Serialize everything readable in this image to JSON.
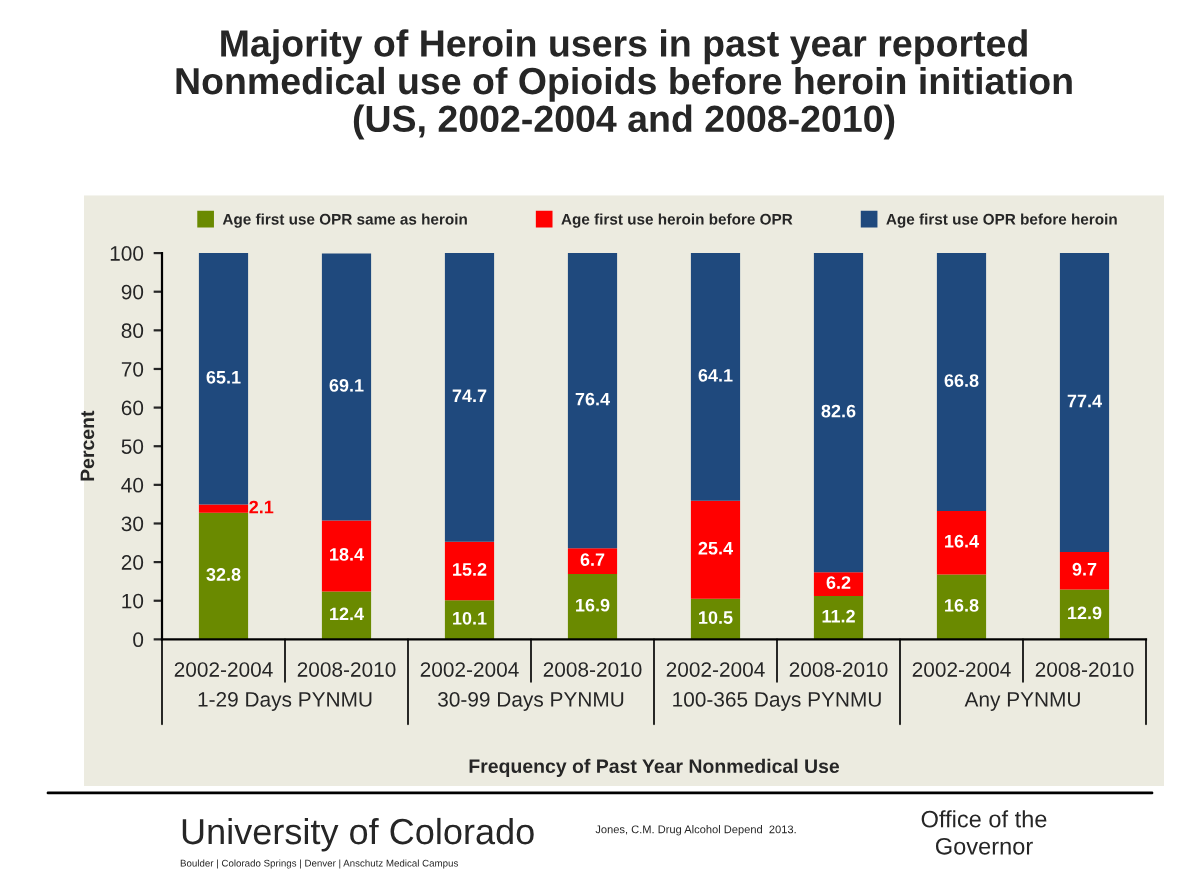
{
  "chart_data": {
    "type": "bar",
    "stacked": true,
    "title": "Majority of Heroin users in past year reported\nNonmedical use of Opioids before heroin initiation\n(US, 2002-2004 and 2008-2010)",
    "categories": [
      "2002-2004",
      "2008-2010",
      "2002-2004",
      "2008-2010",
      "2002-2004",
      "2008-2010",
      "2002-2004",
      "2008-2010"
    ],
    "series": [
      {
        "name": "Age first use OPR same as heroin",
        "color": "#6a8a00",
        "values": [
          32.8,
          12.4,
          10.1,
          16.9,
          10.5,
          11.2,
          16.8,
          12.9
        ]
      },
      {
        "name": "Age first use heroin before OPR",
        "color": "#ff0000",
        "values": [
          2.1,
          18.4,
          15.2,
          6.7,
          25.4,
          6.2,
          16.4,
          9.7
        ]
      },
      {
        "name": "Age first use OPR before heroin",
        "color": "#1f497d",
        "values": [
          65.1,
          69.1,
          74.7,
          76.4,
          64.1,
          82.6,
          66.8,
          77.4
        ]
      }
    ],
    "data_labels": true,
    "ylim": [
      0,
      100
    ],
    "yticks": [
      0,
      10,
      20,
      30,
      40,
      50,
      60,
      70,
      80,
      90,
      100
    ],
    "ylabel": "Percent",
    "xlabel": "Frequency of Past Year Nonmedical Use",
    "legend": "top",
    "grid": false,
    "annotations": [
      "1-29 Days PYNMU",
      "30-99 Days PYNMU",
      "100-365 Days PYNMU",
      "Any PYNMU",
      "University of Colorado",
      "Boulder | Colorado Springs | Denver | Anschutz Medical Campus",
      "Jones, C.M. Drug Alcohol Depend  2013.",
      "Office of the\nGovernor"
    ]
  }
}
